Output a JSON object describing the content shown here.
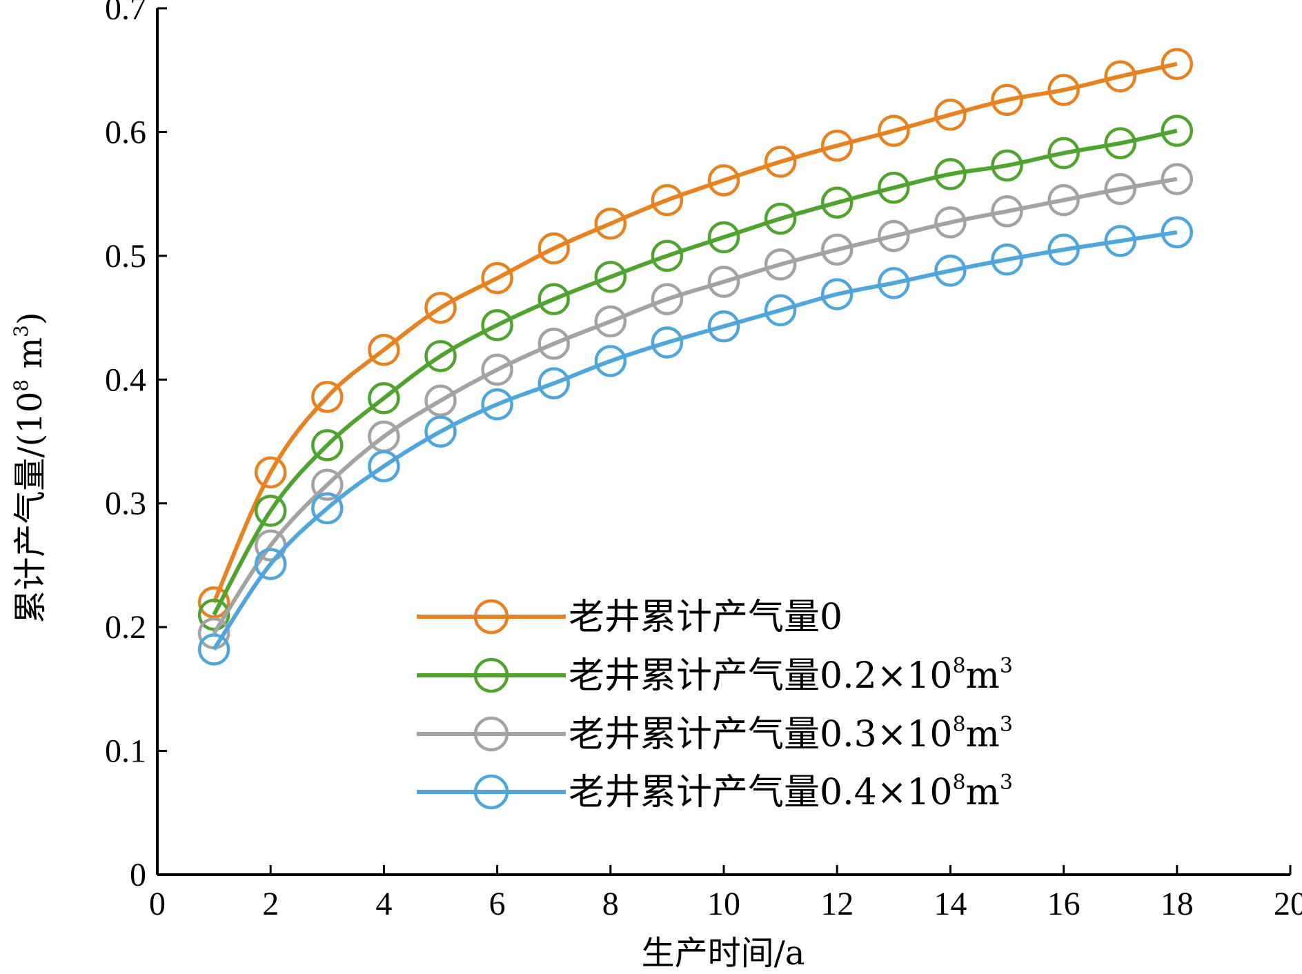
{
  "chart_data": {
    "type": "line",
    "title": "",
    "xlabel": "生产时间/a",
    "ylabel": "累计产气量/(10",
    "ylabel_sup": "8",
    "ylabel_unit": " m",
    "ylabel_sup2": "3",
    "ylabel_close": ")",
    "xlim": [
      0,
      20
    ],
    "ylim": [
      0,
      0.7
    ],
    "xticks": [
      0,
      2,
      4,
      6,
      8,
      10,
      12,
      14,
      16,
      18,
      20
    ],
    "yticks": [
      0,
      0.1,
      0.2,
      0.3,
      0.4,
      0.5,
      0.6,
      0.7
    ],
    "xtick_labels": [
      "0",
      "2",
      "4",
      "6",
      "8",
      "10",
      "12",
      "14",
      "16",
      "18",
      "20"
    ],
    "ytick_labels": [
      "0",
      "0.1",
      "0.2",
      "0.3",
      "0.4",
      "0.5",
      "0.6",
      "0.7"
    ],
    "grid": false,
    "legend_position": "lower-right",
    "marker": "open-circle",
    "x": [
      1,
      2,
      3,
      4,
      5,
      6,
      7,
      8,
      9,
      10,
      11,
      12,
      13,
      14,
      15,
      16,
      17,
      18
    ],
    "series": [
      {
        "name": "老井累计产气量0",
        "legend_label": {
          "text": "老井累计产气量0",
          "sup": "",
          "unit": "",
          "sup2": ""
        },
        "color": "#E8811F",
        "values": [
          0.22,
          0.325,
          0.386,
          0.424,
          0.458,
          0.482,
          0.506,
          0.526,
          0.545,
          0.561,
          0.576,
          0.589,
          0.601,
          0.614,
          0.626,
          0.634,
          0.645,
          0.655
        ]
      },
      {
        "name": "老井累计产气量0.2×108m3",
        "legend_label": {
          "text": "老井累计产气量0.2×10",
          "sup": "8",
          "unit": "m",
          "sup2": "3"
        },
        "color": "#4FA42F",
        "values": [
          0.21,
          0.294,
          0.347,
          0.385,
          0.419,
          0.444,
          0.465,
          0.483,
          0.5,
          0.515,
          0.53,
          0.543,
          0.555,
          0.566,
          0.573,
          0.583,
          0.591,
          0.601
        ]
      },
      {
        "name": "老井累计产气量0.3×108m3",
        "legend_label": {
          "text": "老井累计产气量0.3×10",
          "sup": "8",
          "unit": "m",
          "sup2": "3"
        },
        "color": "#A3A3A3",
        "values": [
          0.195,
          0.266,
          0.315,
          0.354,
          0.383,
          0.408,
          0.429,
          0.447,
          0.465,
          0.479,
          0.493,
          0.505,
          0.516,
          0.527,
          0.536,
          0.545,
          0.554,
          0.562
        ]
      },
      {
        "name": "老井累计产气量0.4×108m3",
        "legend_label": {
          "text": "老井累计产气量0.4×10",
          "sup": "8",
          "unit": "m",
          "sup2": "3"
        },
        "color": "#4FA6DD",
        "values": [
          0.182,
          0.251,
          0.296,
          0.33,
          0.358,
          0.38,
          0.397,
          0.415,
          0.43,
          0.443,
          0.456,
          0.469,
          0.478,
          0.488,
          0.497,
          0.505,
          0.512,
          0.519
        ]
      }
    ]
  }
}
